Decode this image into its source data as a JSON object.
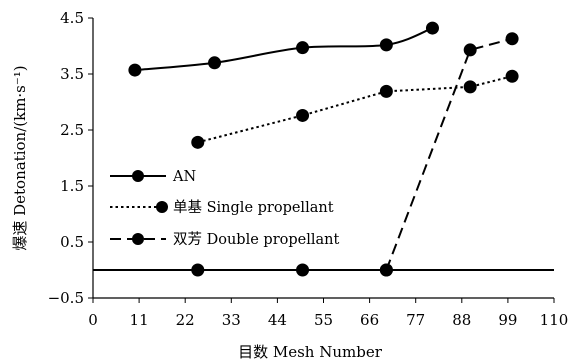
{
  "chart_data": {
    "type": "line",
    "title": "",
    "xlabel": "目数 Mesh Number",
    "ylabel": "爆速 Detonation/(km·s⁻¹)",
    "xlim": [
      0,
      110
    ],
    "ylim": [
      -0.5,
      4.5
    ],
    "x_ticks": [
      "0",
      "11",
      "22",
      "33",
      "44",
      "55",
      "66",
      "77",
      "88",
      "99",
      "110"
    ],
    "y_ticks": [
      "4.5",
      "3.5",
      "2.5",
      "1.5",
      "0.5",
      "−0.5"
    ],
    "grid": false,
    "legend_position": "left",
    "series": [
      {
        "name": "AN",
        "line_style": "solid",
        "smooth": true,
        "points": [
          [
            10,
            3.57
          ],
          [
            29,
            3.7
          ],
          [
            50,
            3.97
          ],
          [
            70,
            4.02
          ],
          [
            81,
            4.32
          ]
        ]
      },
      {
        "name": "单基 Single propellant",
        "line_style": "dotted",
        "smooth": false,
        "points": [
          [
            25,
            2.28
          ],
          [
            50,
            2.76
          ],
          [
            70,
            3.19
          ],
          [
            90,
            3.27
          ],
          [
            100,
            3.46
          ]
        ]
      },
      {
        "name": "双芳 Double propellant",
        "line_style": "dashed",
        "smooth": false,
        "points": [
          [
            70,
            0.0
          ],
          [
            90,
            3.93
          ],
          [
            100,
            4.13
          ]
        ]
      },
      {
        "line_style": "solid",
        "smooth": false,
        "full_width": true,
        "points": [
          [
            0,
            0.0
          ],
          [
            110,
            0.0
          ]
        ],
        "markers": [
          [
            25,
            0.0
          ],
          [
            50,
            0.0
          ],
          [
            70,
            0.0
          ]
        ]
      }
    ]
  }
}
